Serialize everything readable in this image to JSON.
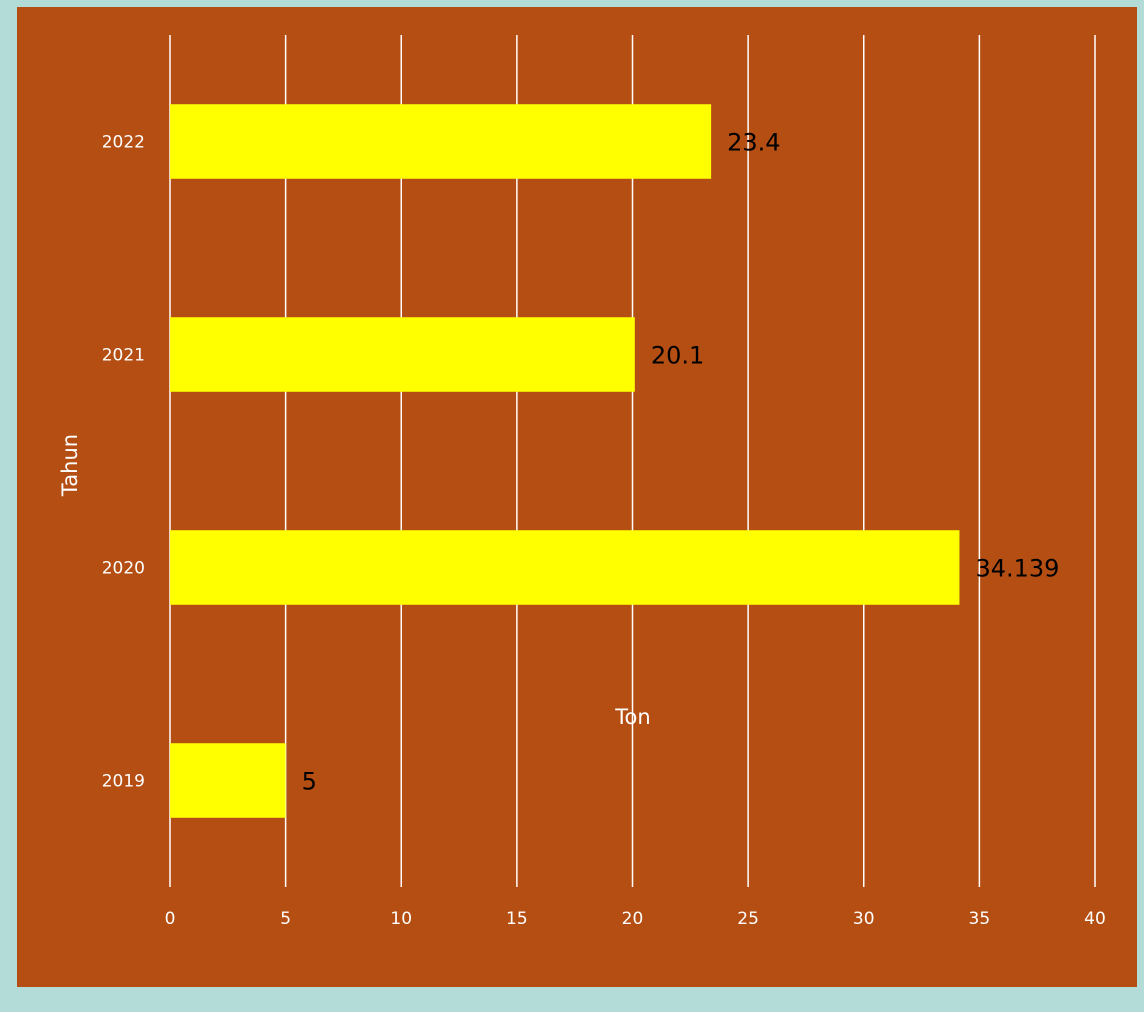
{
  "chart_data": {
    "type": "bar",
    "orientation": "horizontal",
    "categories": [
      "2019",
      "2020",
      "2021",
      "2022"
    ],
    "values": [
      5,
      34.139,
      20.1,
      23.4
    ],
    "value_labels": [
      "5",
      "34.139",
      "20.1",
      "23.4"
    ],
    "xlabel": "Ton",
    "ylabel": "Tahun",
    "xlim": [
      0,
      40
    ],
    "xticks": [
      "0",
      "5",
      "10",
      "15",
      "20",
      "25",
      "30",
      "35",
      "40"
    ],
    "grid": "vertical",
    "legend": "none",
    "colors": {
      "bar": "#ffff00",
      "plot_background": "#b44e13",
      "page_background": "#b3dcd9",
      "gridline": "#ffffff",
      "tick_text": "#ffffff",
      "data_label_text": "#000000"
    }
  }
}
